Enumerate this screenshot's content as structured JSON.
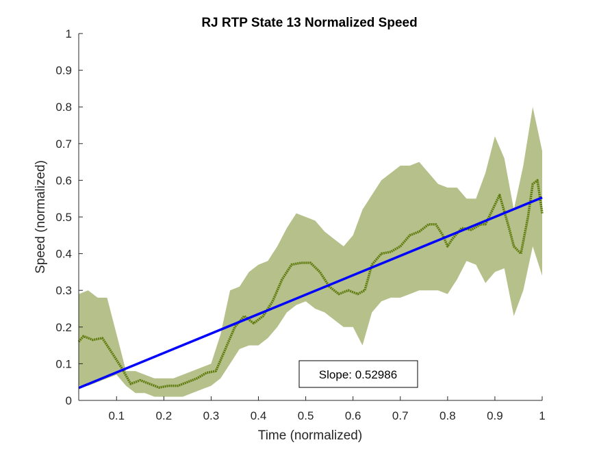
{
  "chart_data": {
    "type": "line",
    "title": "RJ  RTP State 13 Normalized Speed",
    "xlabel": "Time (normalized)",
    "ylabel": "Speed (normalized)",
    "xlim": [
      0.02,
      1
    ],
    "ylim": [
      0,
      1
    ],
    "xticks": [
      "0.1",
      "0.2",
      "0.3",
      "0.4",
      "0.5",
      "0.6",
      "0.7",
      "0.8",
      "0.9",
      "1"
    ],
    "xtick_values": [
      0.1,
      0.2,
      0.3,
      0.4,
      0.5,
      0.6,
      0.7,
      0.8,
      0.9,
      1.0
    ],
    "yticks": [
      "0",
      "0.1",
      "0.2",
      "0.3",
      "0.4",
      "0.5",
      "0.6",
      "0.7",
      "0.8",
      "0.9",
      "1"
    ],
    "ytick_values": [
      0,
      0.1,
      0.2,
      0.3,
      0.4,
      0.5,
      0.6,
      0.7,
      0.8,
      0.9,
      1.0
    ],
    "grid": false,
    "colors": {
      "band": "#b5c08a",
      "mean": "#5e7a0b",
      "fit": "#0000ff",
      "axis": "#262626"
    },
    "series": [
      {
        "type": "band",
        "x": [
          0.02,
          0.04,
          0.06,
          0.08,
          0.1,
          0.12,
          0.14,
          0.16,
          0.18,
          0.2,
          0.22,
          0.24,
          0.26,
          0.28,
          0.3,
          0.32,
          0.34,
          0.36,
          0.38,
          0.4,
          0.42,
          0.44,
          0.46,
          0.48,
          0.5,
          0.52,
          0.54,
          0.56,
          0.58,
          0.6,
          0.62,
          0.64,
          0.66,
          0.68,
          0.7,
          0.72,
          0.74,
          0.76,
          0.78,
          0.8,
          0.82,
          0.84,
          0.86,
          0.88,
          0.9,
          0.92,
          0.94,
          0.96,
          0.98,
          1.0
        ],
        "upper": [
          0.29,
          0.3,
          0.28,
          0.28,
          0.18,
          0.08,
          0.08,
          0.07,
          0.06,
          0.06,
          0.06,
          0.07,
          0.08,
          0.09,
          0.1,
          0.18,
          0.3,
          0.31,
          0.35,
          0.37,
          0.38,
          0.42,
          0.47,
          0.51,
          0.5,
          0.49,
          0.46,
          0.44,
          0.42,
          0.45,
          0.52,
          0.56,
          0.6,
          0.62,
          0.64,
          0.64,
          0.65,
          0.62,
          0.59,
          0.58,
          0.58,
          0.55,
          0.55,
          0.62,
          0.72,
          0.66,
          0.52,
          0.64,
          0.8,
          0.68
        ],
        "lower": [
          0.04,
          0.04,
          0.05,
          0.06,
          0.07,
          0.04,
          0.02,
          0.02,
          0.01,
          0.01,
          0.01,
          0.01,
          0.02,
          0.03,
          0.04,
          0.06,
          0.1,
          0.14,
          0.15,
          0.15,
          0.17,
          0.2,
          0.24,
          0.26,
          0.27,
          0.25,
          0.24,
          0.22,
          0.2,
          0.2,
          0.15,
          0.24,
          0.27,
          0.28,
          0.28,
          0.29,
          0.3,
          0.3,
          0.3,
          0.29,
          0.33,
          0.38,
          0.37,
          0.32,
          0.35,
          0.36,
          0.23,
          0.3,
          0.42,
          0.34
        ]
      },
      {
        "type": "line",
        "x": [
          0.02,
          0.03,
          0.05,
          0.07,
          0.09,
          0.11,
          0.13,
          0.15,
          0.17,
          0.19,
          0.21,
          0.23,
          0.25,
          0.27,
          0.29,
          0.31,
          0.33,
          0.35,
          0.37,
          0.39,
          0.41,
          0.43,
          0.45,
          0.47,
          0.49,
          0.51,
          0.53,
          0.55,
          0.57,
          0.59,
          0.61,
          0.625,
          0.64,
          0.66,
          0.68,
          0.7,
          0.72,
          0.74,
          0.76,
          0.775,
          0.79,
          0.8,
          0.81,
          0.83,
          0.85,
          0.87,
          0.88,
          0.895,
          0.91,
          0.93,
          0.94,
          0.955,
          0.97,
          0.98,
          0.99,
          1.0
        ],
        "y": [
          0.16,
          0.175,
          0.165,
          0.17,
          0.13,
          0.09,
          0.045,
          0.055,
          0.045,
          0.035,
          0.04,
          0.04,
          0.05,
          0.06,
          0.075,
          0.08,
          0.14,
          0.2,
          0.23,
          0.21,
          0.23,
          0.27,
          0.33,
          0.37,
          0.375,
          0.375,
          0.35,
          0.31,
          0.29,
          0.3,
          0.29,
          0.3,
          0.37,
          0.4,
          0.405,
          0.42,
          0.45,
          0.46,
          0.48,
          0.48,
          0.45,
          0.42,
          0.44,
          0.47,
          0.465,
          0.48,
          0.48,
          0.52,
          0.56,
          0.47,
          0.42,
          0.4,
          0.5,
          0.59,
          0.6,
          0.51
        ]
      },
      {
        "type": "fit",
        "x": [
          0.02,
          1.0
        ],
        "y": [
          0.034,
          0.553
        ]
      }
    ],
    "annotation": {
      "text": "Slope: 0.52986"
    }
  }
}
